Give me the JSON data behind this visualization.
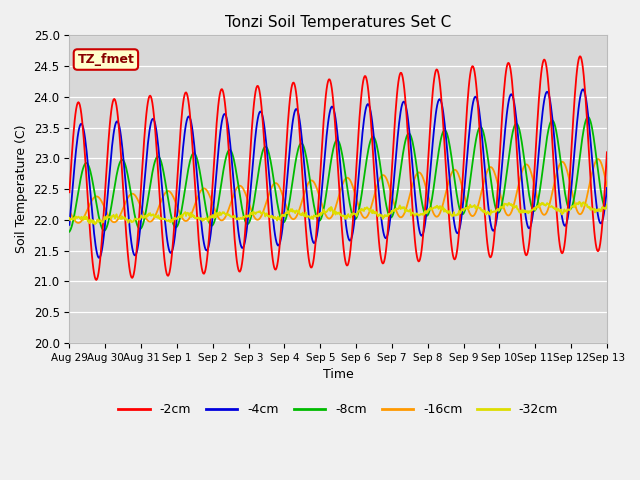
{
  "title": "Tonzi Soil Temperatures Set C",
  "xlabel": "Time",
  "ylabel": "Soil Temperature (C)",
  "ylim": [
    20.0,
    25.0
  ],
  "yticks": [
    20.0,
    20.5,
    21.0,
    21.5,
    22.0,
    22.5,
    23.0,
    23.5,
    24.0,
    24.5,
    25.0
  ],
  "xtick_labels": [
    "Aug 29",
    "Aug 30",
    "Aug 31",
    "Sep 1",
    "Sep 2",
    "Sep 3",
    "Sep 4",
    "Sep 5",
    "Sep 6",
    "Sep 7",
    "Sep 8",
    "Sep 9",
    "Sep 10",
    "Sep 11",
    "Sep 12",
    "Sep 13"
  ],
  "series_colors": [
    "#ff0000",
    "#0000dd",
    "#00bb00",
    "#ff9900",
    "#dddd00"
  ],
  "series_labels": [
    "-2cm",
    "-4cm",
    "-8cm",
    "-16cm",
    "-32cm"
  ],
  "fig_bg": "#f0f0f0",
  "ax_bg": "#d8d8d8",
  "grid_color": "#ffffff",
  "annotation_text": "TZ_fmet",
  "annotation_bg": "#ffffcc",
  "annotation_border": "#cc0000",
  "annotation_text_color": "#880000"
}
